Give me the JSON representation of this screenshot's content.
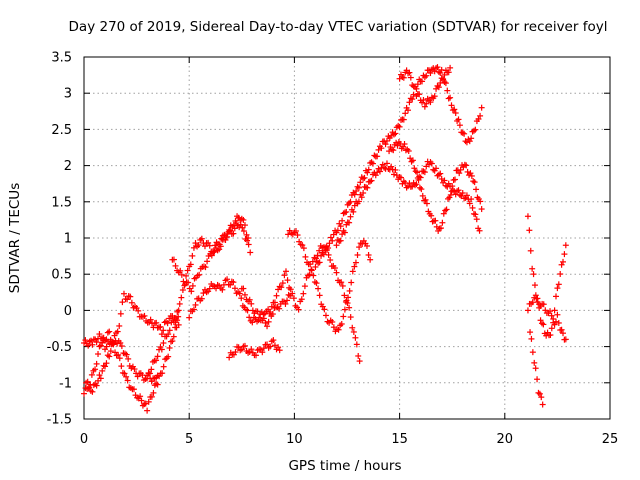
{
  "chart_data": {
    "type": "scatter",
    "title": "Day 270 of 2019, Sidereal Day-to-day VTEC variation (SDTVAR) for receiver foyl",
    "xlabel": "GPS time / hours",
    "ylabel": "SDTVAR / TECUs",
    "xlim": [
      0,
      25
    ],
    "ylim": [
      -1.5,
      3.5
    ],
    "xticks": [
      "0",
      "5",
      "10",
      "15",
      "20",
      "25"
    ],
    "yticks": [
      "-1.5",
      "-1",
      "-0.5",
      "0",
      "0.5",
      "1",
      "1.5",
      "2",
      "2.5",
      "3",
      "3.5"
    ],
    "grid": true,
    "marker": "plus",
    "color": "#ff0000",
    "series": [
      {
        "x": [
          0.0,
          0.3,
          0.6,
          0.8,
          1.0,
          1.2,
          1.4,
          1.7,
          2.0,
          2.3,
          2.6,
          3.0,
          3.3,
          3.5
        ],
        "y": [
          -1.15,
          -1.0,
          -0.7,
          -0.45,
          -0.4,
          -0.3,
          -0.5,
          -0.7,
          -0.95,
          -1.1,
          -1.2,
          -1.35,
          -1.1,
          -0.9
        ]
      },
      {
        "x": [
          0.0,
          0.4,
          0.8,
          1.0,
          1.3,
          1.6,
          1.9,
          2.2,
          2.5,
          2.8,
          3.1,
          3.3,
          3.5,
          3.7,
          3.9,
          4.2,
          4.5
        ],
        "y": [
          -0.45,
          -0.45,
          -0.35,
          -0.5,
          -0.45,
          -0.3,
          0.2,
          0.15,
          0.0,
          -0.1,
          -0.15,
          -0.2,
          -0.2,
          -0.3,
          -0.15,
          -0.1,
          -0.2
        ]
      },
      {
        "x": [
          0.1,
          0.4,
          0.8,
          1.2,
          1.5,
          1.8,
          2.1,
          2.4,
          2.7,
          3.0,
          3.2,
          3.5,
          3.7,
          4.0,
          4.3,
          4.5
        ],
        "y": [
          -1.0,
          -1.1,
          -0.9,
          -0.6,
          -0.4,
          -0.5,
          -0.7,
          -0.85,
          -0.9,
          -0.95,
          -0.8,
          -0.6,
          -0.5,
          -0.3,
          -0.1,
          0.0
        ]
      },
      {
        "x": [
          3.0,
          3.5,
          4.0,
          4.4,
          4.7,
          5.0,
          5.3,
          5.6,
          5.9,
          6.2,
          6.5,
          6.8,
          7.1,
          7.3,
          7.6,
          7.9
        ],
        "y": [
          -0.9,
          -1.0,
          -0.6,
          -0.2,
          0.3,
          0.6,
          0.9,
          0.95,
          0.9,
          0.8,
          0.9,
          1.05,
          1.1,
          1.2,
          1.1,
          0.8
        ]
      },
      {
        "x": [
          4.2,
          4.5,
          4.8,
          5.1,
          5.4,
          5.7,
          6.0,
          6.3,
          6.6,
          6.9,
          7.2,
          7.5,
          7.8
        ],
        "y": [
          0.7,
          0.55,
          0.4,
          0.3,
          0.5,
          0.6,
          0.75,
          0.9,
          1.0,
          1.1,
          1.25,
          1.3,
          1.0
        ]
      },
      {
        "x": [
          5.0,
          5.3,
          5.6,
          5.9,
          6.2,
          6.5,
          6.8,
          7.1,
          7.4,
          7.7,
          8.0,
          8.3,
          8.6,
          8.9,
          9.2,
          9.5,
          9.8
        ],
        "y": [
          -0.1,
          0.1,
          0.2,
          0.3,
          0.35,
          0.3,
          0.4,
          0.35,
          0.2,
          0.0,
          -0.15,
          -0.1,
          0.0,
          -0.05,
          0.05,
          0.1,
          0.2
        ]
      },
      {
        "x": [
          6.9,
          7.2,
          7.5,
          7.8,
          8.1,
          8.4,
          8.7,
          9.0,
          9.3
        ],
        "y": [
          -0.65,
          -0.55,
          -0.5,
          -0.55,
          -0.6,
          -0.55,
          -0.5,
          -0.45,
          -0.55
        ]
      },
      {
        "x": [
          7.5,
          7.8,
          8.1,
          8.4,
          8.7,
          9.0,
          9.3,
          9.6,
          9.9,
          10.2,
          10.5,
          10.8,
          11.1,
          11.4,
          11.7,
          12.0,
          12.3,
          12.6,
          12.9,
          13.1
        ],
        "y": [
          0.3,
          0.15,
          0.0,
          -0.1,
          -0.2,
          0.1,
          0.3,
          0.5,
          0.2,
          0.0,
          0.35,
          0.6,
          0.8,
          0.9,
          0.7,
          0.5,
          0.3,
          0.0,
          -0.4,
          -0.7
        ]
      },
      {
        "x": [
          9.7,
          10.0,
          10.3,
          10.6,
          10.9,
          11.2,
          11.5,
          11.8,
          12.1,
          12.4,
          12.7,
          13.0,
          13.3,
          13.6
        ],
        "y": [
          1.05,
          1.1,
          0.95,
          0.7,
          0.5,
          0.2,
          -0.1,
          -0.2,
          -0.3,
          0.0,
          0.4,
          0.8,
          1.0,
          0.7
        ]
      },
      {
        "x": [
          11.0,
          11.4,
          11.8,
          12.2,
          12.6,
          13.0,
          13.4,
          13.8,
          14.2,
          14.6,
          15.0,
          15.4,
          15.8,
          16.2,
          16.6,
          17.0,
          17.4,
          17.8,
          18.2,
          18.6,
          18.9
        ],
        "y": [
          0.6,
          0.8,
          1.0,
          1.2,
          1.5,
          1.7,
          1.9,
          2.1,
          2.3,
          2.4,
          2.55,
          2.8,
          3.1,
          3.25,
          3.35,
          3.3,
          2.9,
          2.6,
          2.3,
          2.5,
          2.8
        ]
      },
      {
        "x": [
          12.0,
          12.4,
          12.8,
          13.2,
          13.6,
          14.0,
          14.4,
          14.8,
          15.2,
          15.6,
          16.0,
          16.4,
          16.8,
          17.2,
          17.6,
          18.0,
          18.4,
          18.8
        ],
        "y": [
          0.9,
          1.1,
          1.4,
          1.6,
          1.8,
          1.95,
          2.0,
          1.9,
          1.75,
          1.7,
          1.85,
          2.05,
          1.9,
          1.75,
          1.65,
          1.6,
          1.5,
          1.1
        ]
      },
      {
        "x": [
          14.5,
          14.9,
          15.3,
          15.7,
          16.1,
          16.5,
          16.9,
          17.3,
          17.7,
          18.1,
          18.5,
          18.9
        ],
        "y": [
          2.2,
          2.3,
          2.25,
          2.0,
          1.6,
          1.3,
          1.1,
          1.5,
          1.9,
          2.0,
          1.8,
          1.4
        ]
      },
      {
        "x": [
          15.0,
          15.4,
          15.8,
          16.2,
          16.6,
          17.0,
          17.4
        ],
        "y": [
          3.2,
          3.3,
          3.0,
          2.85,
          2.95,
          3.2,
          3.35
        ]
      },
      {
        "x": [
          21.1,
          21.3,
          21.5,
          21.7,
          21.9,
          22.1,
          22.3,
          22.5,
          22.7,
          22.9
        ],
        "y": [
          1.3,
          0.6,
          0.2,
          -0.1,
          -0.3,
          -0.35,
          -0.2,
          -0.1,
          -0.3,
          -0.4
        ]
      },
      {
        "x": [
          21.2,
          21.4,
          21.6,
          21.8
        ],
        "y": [
          -0.3,
          -0.7,
          -1.1,
          -1.3
        ]
      },
      {
        "x": [
          21.1,
          21.4,
          21.7,
          22.0,
          22.3,
          22.5,
          22.7,
          22.9
        ],
        "y": [
          0.0,
          0.2,
          0.1,
          0.0,
          -0.1,
          0.3,
          0.6,
          0.9
        ]
      }
    ]
  }
}
